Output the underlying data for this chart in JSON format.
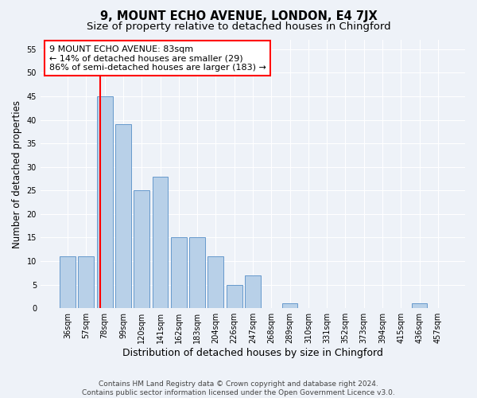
{
  "title": "9, MOUNT ECHO AVENUE, LONDON, E4 7JX",
  "subtitle": "Size of property relative to detached houses in Chingford",
  "xlabel": "Distribution of detached houses by size in Chingford",
  "ylabel": "Number of detached properties",
  "categories": [
    "36sqm",
    "57sqm",
    "78sqm",
    "99sqm",
    "120sqm",
    "141sqm",
    "162sqm",
    "183sqm",
    "204sqm",
    "226sqm",
    "247sqm",
    "268sqm",
    "289sqm",
    "310sqm",
    "331sqm",
    "352sqm",
    "373sqm",
    "394sqm",
    "415sqm",
    "436sqm",
    "457sqm"
  ],
  "values": [
    11,
    11,
    45,
    39,
    25,
    28,
    15,
    15,
    11,
    5,
    7,
    0,
    1,
    0,
    0,
    0,
    0,
    0,
    0,
    1,
    0
  ],
  "bar_color": "#b8d0e8",
  "bar_edge_color": "#6699cc",
  "annotation_text": "9 MOUNT ECHO AVENUE: 83sqm\n← 14% of detached houses are smaller (29)\n86% of semi-detached houses are larger (183) →",
  "annotation_box_color": "white",
  "annotation_box_edge_color": "red",
  "ylim": [
    0,
    57
  ],
  "yticks": [
    0,
    5,
    10,
    15,
    20,
    25,
    30,
    35,
    40,
    45,
    50,
    55
  ],
  "footer_line1": "Contains HM Land Registry data © Crown copyright and database right 2024.",
  "footer_line2": "Contains public sector information licensed under the Open Government Licence v3.0.",
  "background_color": "#eef2f8",
  "grid_color": "#ffffff",
  "title_fontsize": 10.5,
  "subtitle_fontsize": 9.5,
  "tick_fontsize": 7,
  "ylabel_fontsize": 8.5,
  "xlabel_fontsize": 9,
  "footer_fontsize": 6.5,
  "annotation_fontsize": 8
}
